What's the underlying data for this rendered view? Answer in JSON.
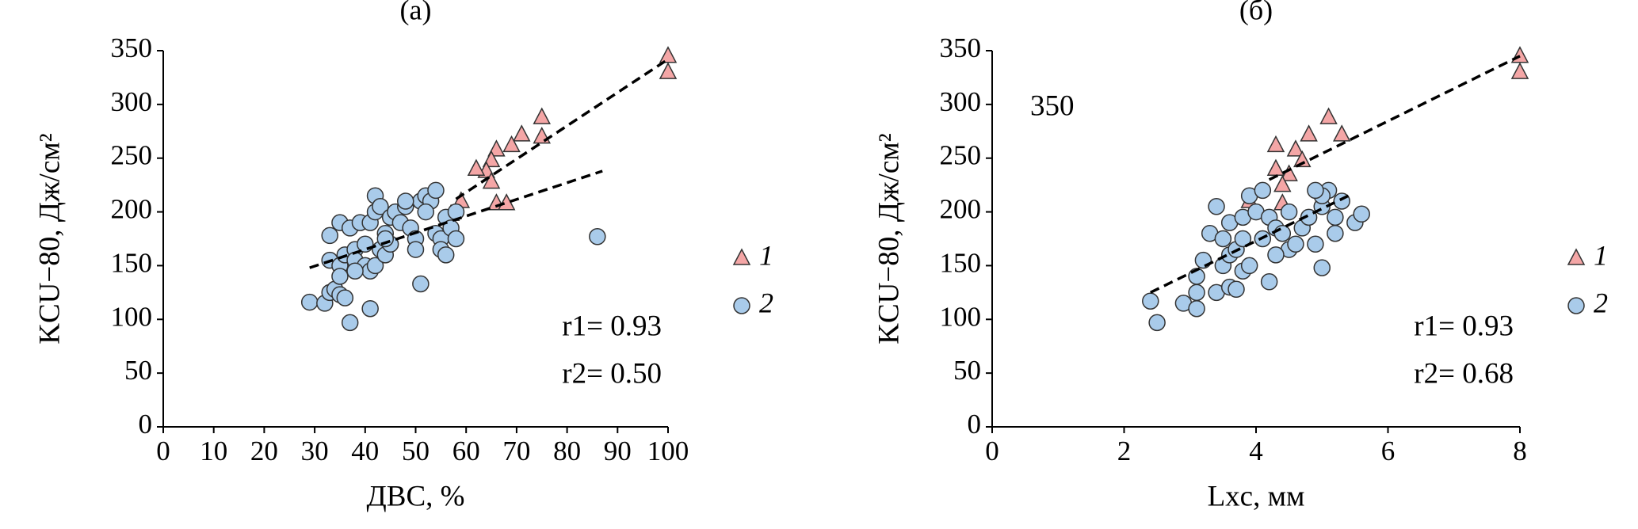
{
  "chart_data": [
    {
      "type": "scatter",
      "title": "(a)",
      "xlabel": "ДВС, %",
      "ylabel": "KCU−80, Дж/см²",
      "xlim": [
        0,
        100
      ],
      "xticks": [
        0,
        10,
        20,
        30,
        40,
        50,
        60,
        70,
        80,
        90,
        100
      ],
      "ylim": [
        0,
        350
      ],
      "yticks": [
        0,
        50,
        100,
        150,
        200,
        250,
        300,
        350
      ],
      "series": [
        {
          "name": "1",
          "marker": "triangle",
          "color": "#f4a6a6",
          "x": [
            100,
            100,
            75,
            75,
            71,
            69,
            66,
            65,
            64,
            65,
            62,
            66,
            68,
            59,
            57
          ],
          "y": [
            345,
            330,
            288,
            270,
            272,
            262,
            258,
            248,
            238,
            228,
            240,
            208,
            208,
            210,
            198
          ]
        },
        {
          "name": "2",
          "marker": "circle",
          "color": "#a9cbea",
          "x": [
            29,
            32,
            33,
            34,
            35,
            36,
            37,
            41,
            51,
            86,
            33,
            35,
            36,
            38,
            38,
            40,
            41,
            42,
            43,
            44,
            45,
            35,
            33,
            37,
            39,
            40,
            41,
            42,
            42,
            43,
            44,
            45,
            46,
            47,
            48,
            49,
            50,
            50,
            51,
            52,
            53,
            54,
            54,
            55,
            55,
            56,
            57,
            58,
            56,
            58,
            35,
            38,
            44,
            48,
            52
          ],
          "y": [
            116,
            115,
            125,
            128,
            123,
            120,
            97,
            110,
            133,
            177,
            155,
            150,
            160,
            165,
            155,
            150,
            145,
            150,
            165,
            160,
            170,
            190,
            178,
            185,
            190,
            170,
            190,
            200,
            215,
            205,
            180,
            195,
            200,
            190,
            205,
            185,
            175,
            165,
            210,
            215,
            210,
            220,
            180,
            175,
            165,
            195,
            185,
            175,
            160,
            200,
            140,
            145,
            175,
            210,
            200
          ]
        }
      ],
      "fit_lines": [
        {
          "x": [
            58,
            100
          ],
          "y": [
            212,
            342
          ]
        },
        {
          "x": [
            29,
            87
          ],
          "y": [
            148,
            238
          ]
        }
      ],
      "annotations": [
        "r1= 0.93",
        "r2= 0.50"
      ]
    },
    {
      "type": "scatter",
      "title": "(б)",
      "xlabel": "Lxc, мм",
      "ylabel": "KCU−80, Дж/см²",
      "xlim": [
        0,
        8
      ],
      "xticks": [
        0,
        2,
        4,
        6,
        8
      ],
      "ylim": [
        0,
        350
      ],
      "yticks": [
        0,
        50,
        100,
        150,
        200,
        250,
        300,
        350
      ],
      "series": [
        {
          "name": "1",
          "marker": "triangle",
          "color": "#f4a6a6",
          "x": [
            8,
            8,
            5.1,
            5.3,
            4.8,
            4.3,
            4.6,
            4.7,
            4.3,
            4.5,
            4.4,
            4.4,
            3.9
          ],
          "y": [
            345,
            330,
            288,
            272,
            272,
            262,
            258,
            248,
            240,
            235,
            225,
            208,
            210
          ]
        },
        {
          "name": "2",
          "marker": "circle",
          "color": "#a9cbea",
          "x": [
            2.4,
            2.5,
            2.9,
            3.1,
            3.1,
            3.1,
            3.2,
            3.3,
            3.4,
            3.5,
            3.6,
            3.6,
            3.7,
            3.8,
            3.9,
            4.2,
            3.4,
            3.5,
            3.6,
            3.8,
            3.9,
            4.0,
            4.1,
            4.2,
            4.3,
            4.4,
            4.5,
            4.6,
            4.7,
            4.8,
            4.9,
            5.0,
            5.0,
            5.1,
            5.0,
            5.2,
            5.3,
            5.5,
            5.6,
            4.1,
            4.3,
            4.5,
            4.9,
            5.2,
            3.7,
            3.8
          ],
          "y": [
            117,
            97,
            115,
            110,
            125,
            140,
            155,
            180,
            125,
            150,
            160,
            130,
            128,
            145,
            150,
            135,
            205,
            175,
            190,
            195,
            215,
            200,
            175,
            195,
            185,
            180,
            165,
            170,
            185,
            195,
            170,
            148,
            205,
            220,
            215,
            195,
            210,
            190,
            198,
            220,
            160,
            200,
            220,
            180,
            165,
            175
          ]
        }
      ],
      "fit_lines": [
        {
          "x": [
            4.2,
            8
          ],
          "y": [
            230,
            345
          ]
        },
        {
          "x": [
            2.4,
            5.4
          ],
          "y": [
            125,
            215
          ]
        }
      ],
      "annotations": [
        "350",
        "r1= 0.93",
        "r2= 0.68"
      ]
    }
  ]
}
